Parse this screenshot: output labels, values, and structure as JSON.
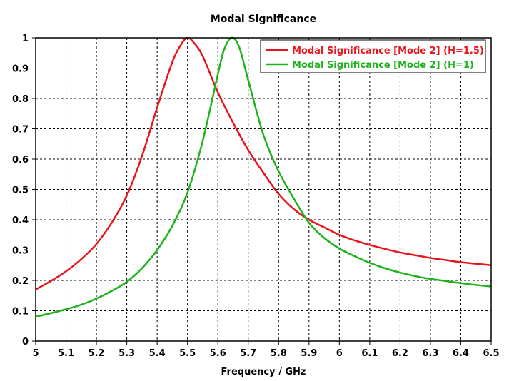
{
  "chart_data": {
    "type": "line",
    "title": "Modal Significance",
    "xlabel": "Frequency / GHz",
    "ylabel": "",
    "xlim": [
      5,
      6.5
    ],
    "ylim": [
      0,
      1
    ],
    "x_ticks": [
      5,
      5.1,
      5.2,
      5.3,
      5.4,
      5.5,
      5.6,
      5.7,
      5.8,
      5.9,
      6,
      6.1,
      6.2,
      6.3,
      6.4,
      6.5
    ],
    "x_tick_labels": [
      "5",
      "5.1",
      "5.2",
      "5.3",
      "5.4",
      "5.5",
      "5.6",
      "5.7",
      "5.8",
      "5.9",
      "6",
      "6.1",
      "6.2",
      "6.3",
      "6.4",
      "6.5"
    ],
    "y_ticks": [
      0,
      0.1,
      0.2,
      0.3,
      0.4,
      0.5,
      0.6,
      0.7,
      0.8,
      0.9,
      1
    ],
    "y_tick_labels": [
      "0",
      "0.1",
      "0.2",
      "0.3",
      "0.4",
      "0.5",
      "0.6",
      "0.7",
      "0.8",
      "0.9",
      "1"
    ],
    "grid": true,
    "legend_position": "top-right",
    "series": [
      {
        "name": "Modal Significance [Mode 2] (H=1.5)",
        "color": "#e8151b",
        "x": [
          5.0,
          5.05,
          5.1,
          5.15,
          5.2,
          5.25,
          5.3,
          5.35,
          5.4,
          5.45,
          5.48,
          5.5,
          5.52,
          5.55,
          5.6,
          5.65,
          5.7,
          5.75,
          5.8,
          5.85,
          5.9,
          5.95,
          6.0,
          6.05,
          6.1,
          6.15,
          6.2,
          6.25,
          6.3,
          6.35,
          6.4,
          6.45,
          6.5
        ],
        "y": [
          0.17,
          0.198,
          0.23,
          0.27,
          0.32,
          0.39,
          0.48,
          0.61,
          0.77,
          0.92,
          0.98,
          1.0,
          0.985,
          0.94,
          0.82,
          0.72,
          0.63,
          0.555,
          0.485,
          0.435,
          0.4,
          0.375,
          0.35,
          0.332,
          0.317,
          0.304,
          0.292,
          0.283,
          0.274,
          0.267,
          0.26,
          0.255,
          0.25
        ]
      },
      {
        "name": "Modal Significance [Mode 2] (H=1)",
        "color": "#1db31a",
        "x": [
          5.0,
          5.05,
          5.1,
          5.15,
          5.2,
          5.25,
          5.3,
          5.35,
          5.4,
          5.45,
          5.5,
          5.55,
          5.6,
          5.62,
          5.645,
          5.67,
          5.7,
          5.75,
          5.8,
          5.85,
          5.9,
          5.95,
          6.0,
          6.05,
          6.1,
          6.15,
          6.2,
          6.25,
          6.3,
          6.35,
          6.4,
          6.45,
          6.5
        ],
        "y": [
          0.08,
          0.092,
          0.105,
          0.12,
          0.14,
          0.165,
          0.195,
          0.24,
          0.3,
          0.38,
          0.49,
          0.66,
          0.88,
          0.96,
          1.0,
          0.97,
          0.86,
          0.68,
          0.56,
          0.47,
          0.39,
          0.34,
          0.305,
          0.28,
          0.258,
          0.24,
          0.226,
          0.214,
          0.205,
          0.198,
          0.191,
          0.185,
          0.18
        ]
      }
    ]
  }
}
